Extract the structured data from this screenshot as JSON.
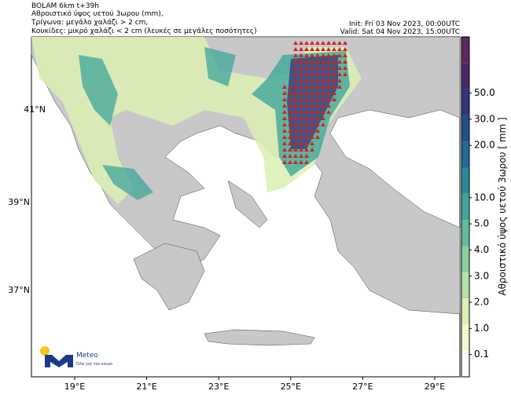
{
  "header": {
    "lines": [
      "BOLAM 6km t+39h",
      "Αθροιστικό ύψος υετού 3ωρου (mm),",
      "Τρίγωνα: μεγάλο χαλάζι > 2 cm,",
      "Κουκίδες: μικρό χαλάζι < 2 cm (λευκές σε μεγάλες ποσότητες)"
    ],
    "init": "Init: Fri 03 Nov 2023, 00:00UTC",
    "valid": "Valid: Sat 04 Nov 2023, 15:00UTC"
  },
  "map": {
    "lat_labels": [
      "41°N",
      "39°N",
      "37°N"
    ],
    "lon_labels": [
      "19°E",
      "21°E",
      "23°E",
      "25°E",
      "27°E",
      "29°E"
    ]
  },
  "colorbar": {
    "label": "Αθροιστικό ύψος υετού 3ωρου [ mm ]",
    "ticks": [
      "0.1",
      "1.0",
      "2.0",
      "3.0",
      "4.0",
      "5.0",
      "10.0",
      "20.0",
      "30.0",
      "50.0"
    ],
    "colors": [
      "#ffffff",
      "#f5f8c8",
      "#dcf0b4",
      "#b4e2a8",
      "#8ad0a0",
      "#60bc9c",
      "#3ea69a",
      "#2a8a98",
      "#206c94",
      "#22508a",
      "#33367a",
      "#4a2a6a",
      "#5e2a5e"
    ]
  },
  "logo": {
    "name": "Meteo",
    "tagline": "Όλα για τον καιρό"
  }
}
